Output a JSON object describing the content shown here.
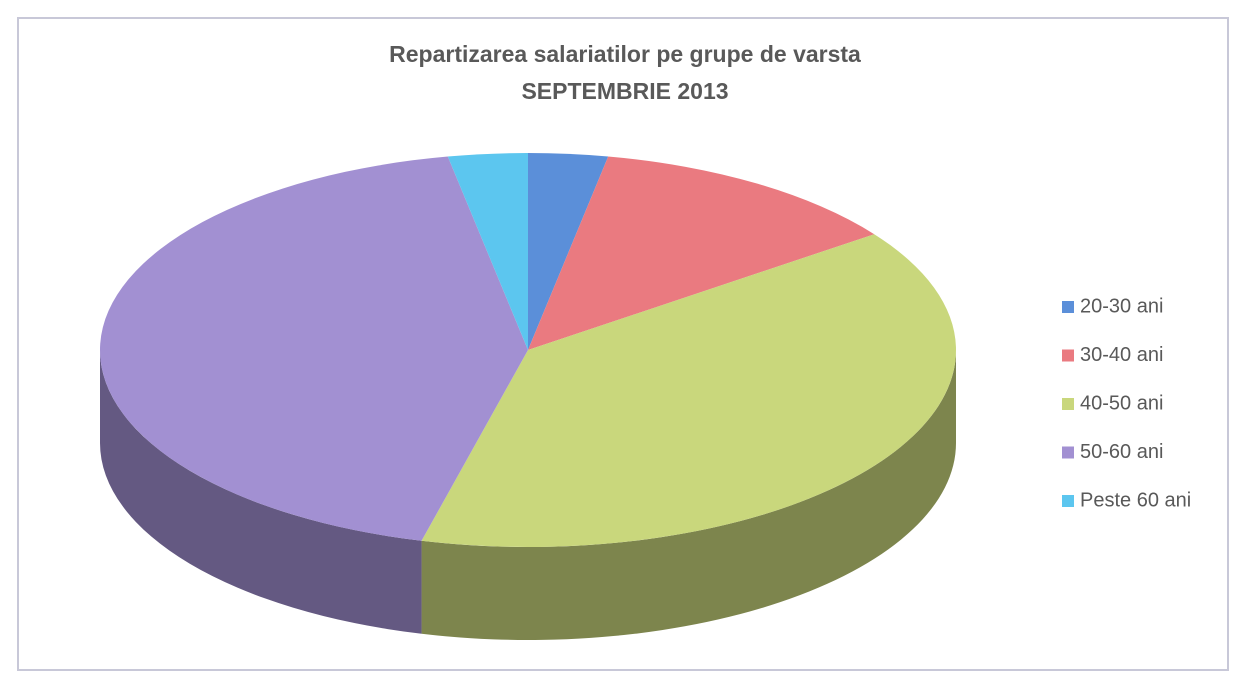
{
  "chart_data": {
    "type": "pie3d",
    "title": "Repartizarea salariatilor pe grupe de varsta",
    "subtitle": "SEPTEMBRIE 2013",
    "categories": [
      "20-30 ani",
      "30-40 ani",
      "40-50 ani",
      "50-60 ani",
      "Peste 60 ani"
    ],
    "values": [
      3,
      12,
      39,
      43,
      3
    ],
    "colors": [
      "#5b8fd9",
      "#ea7a80",
      "#c9d77c",
      "#a290d2",
      "#5cc6ef"
    ],
    "legend": "right"
  }
}
